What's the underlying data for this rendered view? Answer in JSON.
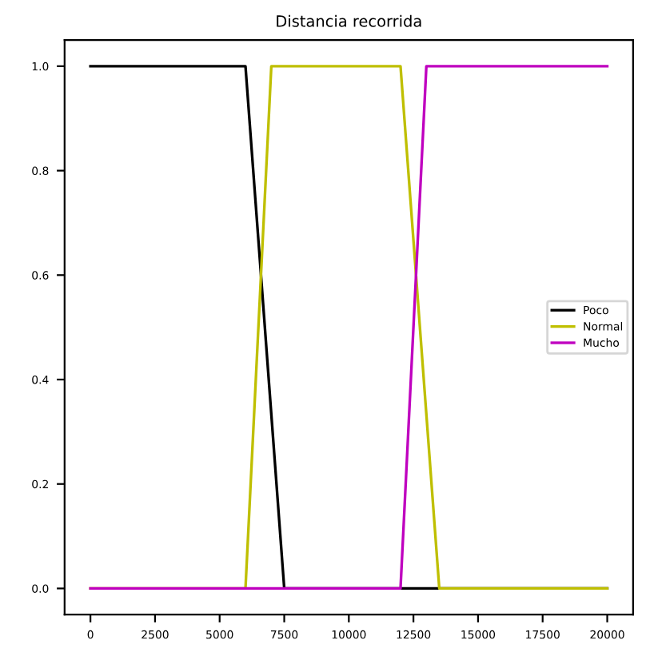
{
  "chart_data": {
    "type": "line",
    "title": "Distancia recorrida",
    "series": [
      {
        "name": "Poco",
        "color": "#000000",
        "x": [
          0,
          6000,
          7500,
          20000
        ],
        "values": [
          1,
          1,
          0,
          0
        ]
      },
      {
        "name": "Normal",
        "color": "#bfbf00",
        "x": [
          0,
          6000,
          7000,
          12000,
          13500,
          20000
        ],
        "values": [
          0,
          0,
          1,
          1,
          0,
          0
        ]
      },
      {
        "name": "Mucho",
        "color": "#bf00bf",
        "x": [
          0,
          12000,
          13000,
          20000
        ],
        "values": [
          0,
          0,
          1,
          1
        ]
      }
    ],
    "xlim": [
      -1000,
      21000
    ],
    "ylim": [
      -0.05,
      1.05
    ],
    "xticks": [
      0,
      2500,
      5000,
      7500,
      10000,
      12500,
      15000,
      17500,
      20000
    ],
    "yticks": [
      {
        "value": 0,
        "label": "0.0"
      },
      {
        "value": 0.2,
        "label": "0.2"
      },
      {
        "value": 0.4,
        "label": "0.4"
      },
      {
        "value": 0.6,
        "label": "0.6"
      },
      {
        "value": 0.8,
        "label": "0.8"
      },
      {
        "value": 1,
        "label": "1.0"
      }
    ],
    "legend": "right",
    "grid": false
  }
}
